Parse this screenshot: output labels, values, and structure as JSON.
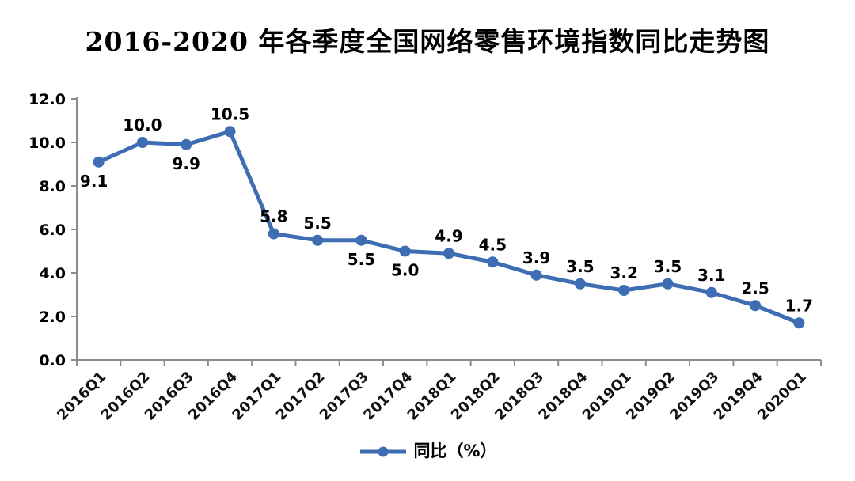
{
  "title": "2016-2020 年各季度全国网络零售环境指数同比走势图",
  "legend": {
    "label": "同比（%）"
  },
  "colors": {
    "line": "#3E6DB3",
    "marker": "#3E6DB3",
    "axis": "#8C8C8C",
    "text": "#000000",
    "background": "#FFFFFF"
  },
  "chart_data": {
    "type": "line",
    "title": "2016-2020 年各季度全国网络零售环境指数同比走势图",
    "xlabel": "",
    "ylabel": "",
    "categories": [
      "2016Q1",
      "2016Q2",
      "2016Q3",
      "2016Q4",
      "2017Q1",
      "2017Q2",
      "2017Q3",
      "2017Q4",
      "2018Q1",
      "2018Q2",
      "2018Q3",
      "2018Q4",
      "2019Q1",
      "2019Q2",
      "2019Q3",
      "2019Q4",
      "2020Q1"
    ],
    "series": [
      {
        "name": "同比（%）",
        "values": [
          9.1,
          10.0,
          9.9,
          10.5,
          5.8,
          5.5,
          5.5,
          5.0,
          4.9,
          4.5,
          3.9,
          3.5,
          3.2,
          3.5,
          3.1,
          2.5,
          1.7
        ]
      }
    ],
    "data_label_positions": [
      "below",
      "above",
      "below",
      "above",
      "above",
      "above",
      "below",
      "below",
      "above",
      "above",
      "above",
      "above",
      "above",
      "above",
      "above",
      "above",
      "above"
    ],
    "ylim": [
      0,
      12
    ],
    "ytick_step": 2,
    "ytick_labels": [
      "0.0",
      "2.0",
      "4.0",
      "6.0",
      "8.0",
      "10.0",
      "12.0"
    ],
    "grid": false,
    "legend_position": "bottom",
    "x_label_rotation": -45
  }
}
